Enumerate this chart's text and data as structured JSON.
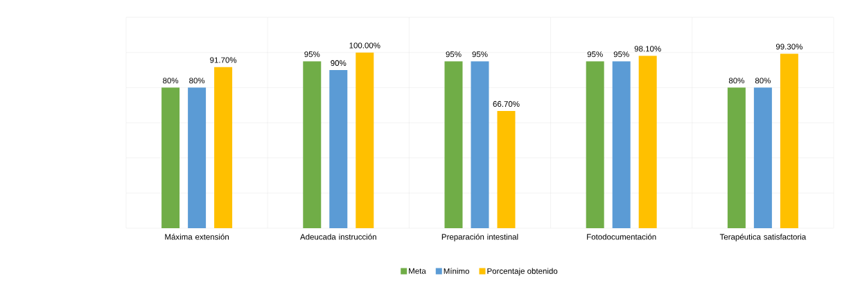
{
  "chart_data": {
    "type": "bar",
    "categories": [
      "Máxima extensión",
      "Adeucada instrucción",
      "Preparación intestinal",
      "Fotodocumentación",
      "Terapéutica satisfactoria"
    ],
    "series": [
      {
        "name": "Meta",
        "color": "#70ad47",
        "values": [
          80,
          95,
          95,
          95,
          80
        ],
        "value_labels": [
          "80%",
          "95%",
          "95%",
          "95%",
          "80%"
        ]
      },
      {
        "name": "Mínimo",
        "color": "#5b9bd5",
        "values": [
          80,
          90,
          95,
          95,
          80
        ],
        "value_labels": [
          "80%",
          "90%",
          "95%",
          "95%",
          "80%"
        ]
      },
      {
        "name": "Porcentaje obtenido",
        "color": "#ffc000",
        "values": [
          91.7,
          100,
          66.7,
          98.1,
          99.3
        ],
        "value_labels": [
          "91.70%",
          "100.00%",
          "66.70%",
          "98.10%",
          "99.30%"
        ]
      }
    ],
    "ylim": [
      0,
      120
    ],
    "yticks": [
      {
        "value": 0,
        "label": null
      },
      {
        "value": 20,
        "label": null
      },
      {
        "value": 40,
        "label": null
      },
      {
        "value": 60,
        "label": null
      },
      {
        "value": 80,
        "label": null
      },
      {
        "value": 100,
        "label": null
      },
      {
        "value": 120,
        "label": null
      }
    ],
    "tick_labels": "x",
    "grid": true,
    "legend": "bottom"
  }
}
